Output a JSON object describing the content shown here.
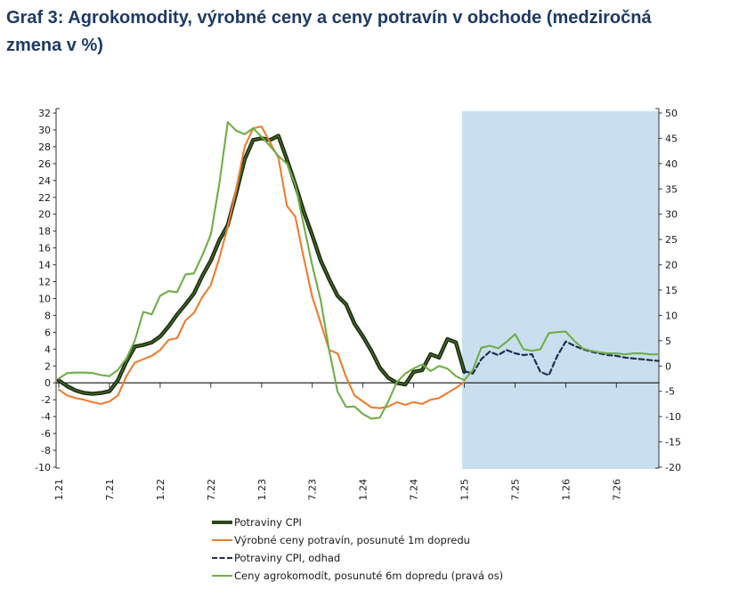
{
  "title": {
    "full": "Graf 3: Agrokomodity, výrobné ceny a ceny potravín v obchode (medziročná zmena v %)",
    "line1": "Graf 3: Agrokomodity, výrobné ceny a ceny potravín v obchode (medziročná",
    "line2": "zmena v %)",
    "color": "#1e3a66"
  },
  "chart_data": {
    "type": "line",
    "x_start": "1.21",
    "x_end": "12.26",
    "months_total": 72,
    "x_tick_labels": [
      "1.21",
      "7.21",
      "1.22",
      "7.22",
      "1.23",
      "7.23",
      "1.24",
      "7.24",
      "1.25",
      "7.25",
      "1.26",
      "7.26"
    ],
    "x_tick_month_step": 6,
    "left_axis": {
      "min": -10,
      "max": 32,
      "step": 2
    },
    "right_axis": {
      "min": -20,
      "max": 50,
      "step": 5
    },
    "grid": false,
    "zero_line": true,
    "forecast_shading": {
      "from_label": "1.25",
      "from_month_index": 48,
      "to_month_index": 71,
      "color": "#c9dfef"
    },
    "legend_position": "bottom-left",
    "series": [
      {
        "name": "Potraviny CPI",
        "axis": "left",
        "style": "solid-thick",
        "color": "#3f6426",
        "edge_color": "#16230b",
        "start_month_index": 0,
        "values": [
          0.3,
          -0.4,
          -0.9,
          -1.2,
          -1.3,
          -1.2,
          -1.0,
          0.3,
          2.5,
          4.3,
          4.5,
          4.8,
          5.5,
          6.7,
          8.1,
          9.3,
          10.6,
          12.7,
          14.5,
          16.9,
          18.7,
          22.5,
          26.5,
          28.8,
          29.0,
          28.8,
          29.3,
          26.5,
          23.5,
          20.3,
          17.5,
          14.5,
          12.3,
          10.3,
          9.3,
          7.0,
          5.5,
          3.8,
          1.8,
          0.6,
          0.0,
          -0.2,
          1.3,
          1.5,
          3.4,
          3.0,
          5.2,
          4.8,
          1.3
        ]
      },
      {
        "name": "Výrobné ceny potravín, posunuté 1m dopredu",
        "axis": "left",
        "style": "solid",
        "color": "#ed7d31",
        "start_month_index": 0,
        "values": [
          -0.8,
          -1.5,
          -1.8,
          -2.0,
          -2.3,
          -2.5,
          -2.2,
          -1.5,
          0.8,
          2.4,
          2.8,
          3.2,
          3.9,
          5.1,
          5.3,
          7.4,
          8.3,
          10.2,
          11.6,
          14.8,
          18.5,
          23.0,
          28.0,
          30.2,
          30.4,
          28.5,
          26.7,
          21.0,
          19.7,
          14.8,
          10.2,
          7.1,
          3.9,
          3.5,
          0.7,
          -1.5,
          -2.2,
          -2.9,
          -3.0,
          -2.8,
          -2.3,
          -2.6,
          -2.3,
          -2.5,
          -2.0,
          -1.8,
          -1.2,
          -0.6,
          0.1
        ]
      },
      {
        "name": "Potraviny CPI, odhad",
        "axis": "left",
        "style": "dashed",
        "color": "#1f2f50",
        "start_month_index": 48,
        "values": [
          1.4,
          1.1,
          2.8,
          3.7,
          3.3,
          3.9,
          3.5,
          3.3,
          3.4,
          1.3,
          0.9,
          3.2,
          4.9,
          4.4,
          4.0,
          3.7,
          3.5,
          3.3,
          3.2,
          3.0,
          2.9,
          2.8,
          2.7,
          2.6
        ]
      },
      {
        "name": "Ceny agrokomodít, posunuté 6m dopredu (pravá os)",
        "axis": "right",
        "style": "solid",
        "color": "#70ad47",
        "start_month_index": 0,
        "values": [
          -2.5,
          -1.4,
          -1.3,
          -1.3,
          -1.4,
          -1.8,
          -2.0,
          -0.8,
          1.5,
          5.0,
          10.7,
          10.2,
          13.9,
          14.8,
          14.6,
          18.1,
          18.3,
          21.9,
          26.0,
          36.0,
          48.2,
          46.5,
          45.8,
          47.0,
          45.3,
          43.5,
          41.5,
          40.0,
          35.8,
          27.8,
          19.9,
          13.0,
          3.1,
          -5.1,
          -8.1,
          -8.0,
          -9.5,
          -10.4,
          -10.2,
          -7.0,
          -3.2,
          -1.5,
          -0.5,
          0.3,
          -1.0,
          0.0,
          -0.5,
          -2.0,
          -2.8,
          -0.8,
          3.6,
          4.0,
          3.5,
          4.8,
          6.3,
          3.3,
          3.0,
          3.3,
          6.5,
          6.7,
          6.8,
          5.0,
          3.5,
          3.0,
          2.7,
          2.5,
          2.5,
          2.3,
          2.5,
          2.5,
          2.3,
          2.3
        ]
      }
    ]
  }
}
